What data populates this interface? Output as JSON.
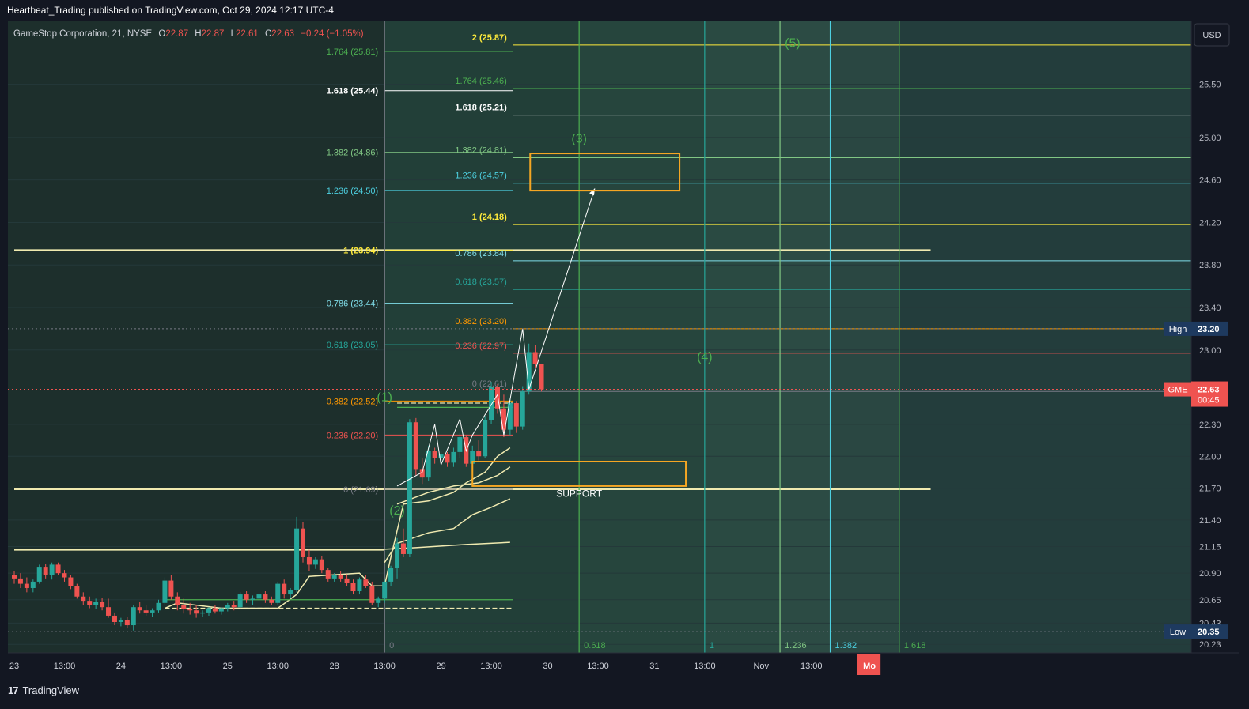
{
  "header": {
    "attribution": "Heartbeat_Trading published on TradingView.com, Oct 29, 2024 12:17 UTC-4"
  },
  "footer": {
    "brand": "TradingView"
  },
  "legend": {
    "symbol": "GameStop Corporation, 21, NYSE",
    "o_label": "O",
    "o_value": "22.87",
    "h_label": "H",
    "h_value": "22.87",
    "l_label": "L",
    "l_value": "22.61",
    "c_label": "C",
    "c_value": "22.63",
    "change": "−0.24 (−1.05%)"
  },
  "colors": {
    "background": "#131722",
    "chart_bg": "#1d2f2c",
    "zone_bg": "#274a40",
    "up": "#26a69a",
    "down": "#ef5350",
    "green": "#4caf50",
    "yellow": "#ffeb3b",
    "orange": "#ff9800",
    "teal": "#26a69a",
    "cyan": "#4dd0e1",
    "cream": "#f0eab0",
    "box_orange": "#f5a623",
    "price_label_bg": "#ef5350",
    "badge_bg": "#1e3a5f"
  },
  "chart_data": {
    "type": "candlestick",
    "symbol": "GME",
    "timeframe": "21",
    "currency": "USD",
    "ylim": [
      20.15,
      26.1
    ],
    "y_ticks": [
      "25.50",
      "25.00",
      "24.60",
      "24.20",
      "23.80",
      "23.40",
      "23.00",
      "22.30",
      "22.00",
      "21.70",
      "21.40",
      "21.15",
      "20.90",
      "20.65",
      "20.43",
      "20.23"
    ],
    "x_ticks": [
      {
        "label": "23",
        "x": 0
      },
      {
        "label": "13:00",
        "x": 8
      },
      {
        "label": "24",
        "x": 17
      },
      {
        "label": "13:00",
        "x": 25
      },
      {
        "label": "25",
        "x": 34
      },
      {
        "label": "13:00",
        "x": 42
      },
      {
        "label": "28",
        "x": 51
      },
      {
        "label": "13:00",
        "x": 59
      },
      {
        "label": "29",
        "x": 68
      },
      {
        "label": "13:00",
        "x": 76
      },
      {
        "label": "30",
        "x": 85
      },
      {
        "label": "13:00",
        "x": 93
      },
      {
        "label": "31",
        "x": 102
      },
      {
        "label": "13:00",
        "x": 110
      },
      {
        "label": "Nov",
        "x": 119
      },
      {
        "label": "13:00",
        "x": 127
      },
      {
        "label": "Mo",
        "x": 136
      }
    ],
    "candles": [
      [
        20.88,
        20.92,
        20.8,
        20.85
      ],
      [
        20.85,
        20.9,
        20.76,
        20.8
      ],
      [
        20.8,
        20.86,
        20.72,
        20.76
      ],
      [
        20.76,
        20.84,
        20.72,
        20.82
      ],
      [
        20.82,
        20.98,
        20.8,
        20.96
      ],
      [
        20.96,
        20.99,
        20.85,
        20.88
      ],
      [
        20.88,
        21.0,
        20.84,
        20.98
      ],
      [
        20.98,
        21.0,
        20.88,
        20.9
      ],
      [
        20.9,
        20.93,
        20.82,
        20.86
      ],
      [
        20.86,
        20.88,
        20.75,
        20.78
      ],
      [
        20.78,
        20.8,
        20.66,
        20.68
      ],
      [
        20.68,
        20.72,
        20.6,
        20.64
      ],
      [
        20.64,
        20.68,
        20.57,
        20.6
      ],
      [
        20.6,
        20.66,
        20.56,
        20.63
      ],
      [
        20.63,
        20.67,
        20.55,
        20.58
      ],
      [
        20.58,
        20.66,
        20.48,
        20.5
      ],
      [
        20.5,
        20.53,
        20.41,
        20.44
      ],
      [
        20.44,
        20.48,
        20.4,
        20.46
      ],
      [
        20.46,
        20.49,
        20.38,
        20.41
      ],
      [
        20.41,
        20.6,
        20.36,
        20.58
      ],
      [
        20.58,
        20.63,
        20.52,
        20.55
      ],
      [
        20.55,
        20.6,
        20.5,
        20.53
      ],
      [
        20.53,
        20.57,
        20.49,
        20.55
      ],
      [
        20.55,
        20.65,
        20.53,
        20.62
      ],
      [
        20.62,
        20.86,
        20.6,
        20.83
      ],
      [
        20.83,
        20.88,
        20.65,
        20.68
      ],
      [
        20.68,
        20.72,
        20.55,
        20.6
      ],
      [
        20.6,
        20.66,
        20.52,
        20.56
      ],
      [
        20.56,
        20.62,
        20.51,
        20.55
      ],
      [
        20.55,
        20.6,
        20.48,
        20.52
      ],
      [
        20.52,
        20.55,
        20.49,
        20.53
      ],
      [
        20.53,
        20.58,
        20.5,
        20.57
      ],
      [
        20.57,
        20.6,
        20.52,
        20.54
      ],
      [
        20.54,
        20.58,
        20.51,
        20.57
      ],
      [
        20.57,
        20.62,
        20.54,
        20.6
      ],
      [
        20.6,
        20.64,
        20.55,
        20.58
      ],
      [
        20.58,
        20.72,
        20.57,
        20.7
      ],
      [
        20.7,
        20.73,
        20.62,
        20.65
      ],
      [
        20.65,
        20.69,
        20.6,
        20.66
      ],
      [
        20.66,
        20.71,
        20.64,
        20.7
      ],
      [
        20.7,
        20.73,
        20.62,
        20.65
      ],
      [
        20.65,
        20.68,
        20.6,
        20.62
      ],
      [
        20.62,
        20.82,
        20.6,
        20.8
      ],
      [
        20.8,
        20.84,
        20.66,
        20.7
      ],
      [
        20.7,
        20.76,
        20.66,
        20.74
      ],
      [
        20.74,
        21.43,
        20.72,
        21.32
      ],
      [
        21.32,
        21.38,
        21.0,
        21.05
      ],
      [
        21.05,
        21.12,
        20.92,
        20.98
      ],
      [
        20.98,
        21.05,
        20.94,
        21.03
      ],
      [
        21.03,
        21.06,
        20.9,
        20.93
      ],
      [
        20.93,
        20.95,
        20.82,
        20.85
      ],
      [
        20.85,
        20.9,
        20.82,
        20.88
      ],
      [
        20.88,
        20.92,
        20.82,
        20.85
      ],
      [
        20.85,
        20.89,
        20.78,
        20.81
      ],
      [
        20.81,
        20.84,
        20.7,
        20.73
      ],
      [
        20.73,
        20.86,
        20.7,
        20.84
      ],
      [
        20.84,
        20.88,
        20.76,
        20.78
      ],
      [
        20.78,
        20.82,
        20.6,
        20.62
      ],
      [
        20.62,
        20.68,
        20.58,
        20.66
      ],
      [
        20.66,
        20.84,
        20.62,
        20.82
      ],
      [
        20.82,
        20.97,
        20.78,
        20.95
      ],
      [
        20.95,
        21.23,
        20.85,
        21.18
      ],
      [
        21.18,
        21.32,
        21.05,
        21.08
      ],
      [
        21.08,
        22.35,
        21.05,
        22.32
      ],
      [
        22.32,
        22.36,
        21.82,
        21.88
      ],
      [
        21.88,
        21.98,
        21.74,
        21.8
      ],
      [
        21.8,
        22.1,
        21.77,
        22.05
      ],
      [
        22.05,
        22.08,
        21.93,
        21.98
      ],
      [
        21.98,
        22.05,
        21.92,
        22.02
      ],
      [
        22.02,
        22.04,
        21.9,
        21.94
      ],
      [
        21.94,
        22.08,
        21.9,
        22.04
      ],
      [
        22.04,
        22.22,
        21.98,
        22.18
      ],
      [
        22.18,
        22.2,
        21.9,
        21.93
      ],
      [
        21.93,
        22.1,
        21.9,
        22.05
      ],
      [
        22.05,
        22.15,
        21.96,
        22.0
      ],
      [
        22.0,
        22.38,
        21.98,
        22.34
      ],
      [
        22.34,
        22.7,
        22.3,
        22.65
      ],
      [
        22.65,
        22.68,
        22.4,
        22.45
      ],
      [
        22.45,
        22.58,
        22.18,
        22.25
      ],
      [
        22.25,
        22.55,
        22.2,
        22.5
      ],
      [
        22.5,
        22.52,
        22.22,
        22.28
      ],
      [
        22.28,
        22.66,
        22.25,
        22.61
      ],
      [
        22.61,
        23.06,
        22.58,
        22.98
      ],
      [
        22.98,
        23.05,
        22.83,
        22.87
      ],
      [
        22.87,
        22.87,
        22.61,
        22.63
      ]
    ],
    "price_labels": {
      "usd": "USD",
      "high_label": "High",
      "high_value": "23.20",
      "sym_label": "GME",
      "last_value": "22.63",
      "countdown": "00:45",
      "low_label": "Low",
      "low_value": "20.35"
    },
    "fib_left": [
      {
        "label": "1.764 (25.81)",
        "price": 25.81,
        "color": "#4caf50"
      },
      {
        "label": "1.618 (25.44)",
        "price": 25.44,
        "color": "#ffffff"
      },
      {
        "label": "1.382 (24.86)",
        "price": 24.86,
        "color": "#81c784"
      },
      {
        "label": "1.236 (24.50)",
        "price": 24.5,
        "color": "#4dd0e1"
      },
      {
        "label": "1 (23.94)",
        "price": 23.94,
        "color": "#ffeb3b"
      },
      {
        "label": "0.786 (23.44)",
        "price": 23.44,
        "color": "#80deea"
      },
      {
        "label": "0.618 (23.05)",
        "price": 23.05,
        "color": "#26a69a"
      },
      {
        "label": "0.382 (22.52)",
        "price": 22.52,
        "color": "#ff9800"
      },
      {
        "label": "0.236 (22.20)",
        "price": 22.2,
        "color": "#ef5350"
      },
      {
        "label": "0 (21.69)",
        "price": 21.69,
        "color": "#787b86"
      }
    ],
    "fib_right": [
      {
        "label": "2 (25.87)",
        "price": 25.87,
        "color": "#ffeb3b"
      },
      {
        "label": "1.764 (25.46)",
        "price": 25.46,
        "color": "#4caf50"
      },
      {
        "label": "1.618 (25.21)",
        "price": 25.21,
        "color": "#ffffff"
      },
      {
        "label": "1.382 (24.81)",
        "price": 24.81,
        "color": "#81c784"
      },
      {
        "label": "1.236 (24.57)",
        "price": 24.57,
        "color": "#4dd0e1"
      },
      {
        "label": "1 (24.18)",
        "price": 24.18,
        "color": "#ffeb3b"
      },
      {
        "label": "0.786 (23.84)",
        "price": 23.84,
        "color": "#80deea"
      },
      {
        "label": "0.618 (23.57)",
        "price": 23.57,
        "color": "#26a69a"
      },
      {
        "label": "0.382 (23.20)",
        "price": 23.2,
        "color": "#ff9800"
      },
      {
        "label": "0.236 (22.97)",
        "price": 22.97,
        "color": "#ef5350"
      },
      {
        "label": "0 (22.61)",
        "price": 22.61,
        "color": "#787b86"
      }
    ],
    "time_fibs": [
      {
        "label": "0",
        "x": 59,
        "color": "#787b86"
      },
      {
        "label": "0.618",
        "x": 90,
        "color": "#4caf50"
      },
      {
        "label": "1",
        "x": 110,
        "color": "#26a69a"
      },
      {
        "label": "1.236",
        "x": 122,
        "color": "#81c784"
      },
      {
        "label": "1.382",
        "x": 130,
        "color": "#4dd0e1"
      },
      {
        "label": "1.618",
        "x": 141,
        "color": "#4caf50"
      }
    ],
    "waves": [
      {
        "label": "(1)",
        "x": 59,
        "price": 22.52
      },
      {
        "label": "(2)",
        "x": 61,
        "price": 21.45
      },
      {
        "label": "(3)",
        "x": 90,
        "price": 24.95
      },
      {
        "label": "(4)",
        "x": 110,
        "price": 22.9
      },
      {
        "label": "(5)",
        "x": 124,
        "price": 25.85
      }
    ],
    "annotations": [
      {
        "label": "SUPPORT",
        "x": 90,
        "price": 21.62
      }
    ],
    "horizontal_lines": [
      {
        "price": 23.94,
        "from": 0,
        "to": 146,
        "color": "#f0eab0"
      },
      {
        "price": 21.69,
        "from": 0,
        "to": 146,
        "color": "#f0eab0"
      },
      {
        "price": 21.12,
        "from": 0,
        "to": 59,
        "color": "#f0eab0"
      }
    ]
  }
}
